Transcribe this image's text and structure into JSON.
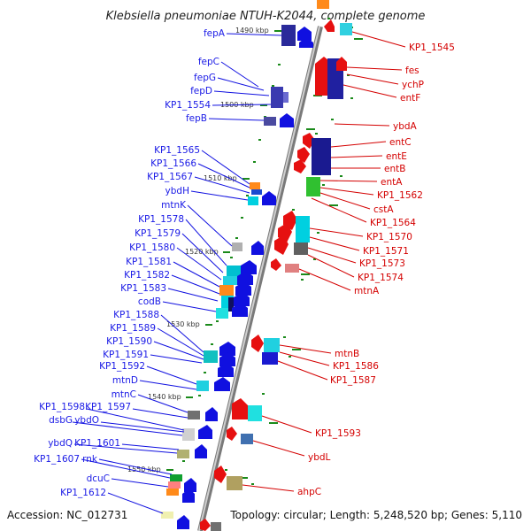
{
  "title": "Klebsiella pneumoniae NTUH-K2044, complete genome",
  "footer": {
    "accession": "Accession: NC_012731",
    "summary": "Topology: circular; Length: 5,248,520 bp; Genes: 5,110"
  },
  "ticks": [
    "1490 kbp",
    "1500 kbp",
    "1510 kbp",
    "1520 kbp",
    "1530 kbp",
    "1540 kbp",
    "1550 kbp"
  ],
  "left_labels": [
    "fepA",
    "fepC",
    "fepG",
    "fepD",
    "KP1_1554",
    "fepB",
    "KP1_1565",
    "KP1_1566",
    "KP1_1567",
    "ybdH",
    "mtnK",
    "KP1_1578",
    "KP1_1579",
    "KP1_1580",
    "KP1_1581",
    "KP1_1582",
    "KP1_1583",
    "codB",
    "KP1_1588",
    "KP1_1589",
    "KP1_1590",
    "KP1_1591",
    "KP1_1592",
    "mtnD",
    "mtnC",
    "KP1_1598",
    "KP1_1597",
    "dsbG",
    "ybdO",
    "ybdQ",
    "KP1_1601",
    "KP1_1607",
    "rnk",
    "dcuC",
    "KP1_1612"
  ],
  "right_labels": [
    "KP1_1545",
    "fes",
    "ychP",
    "entF",
    "ybdA",
    "entC",
    "entE",
    "entB",
    "entA",
    "KP1_1562",
    "cstA",
    "KP1_1564",
    "KP1_1570",
    "KP1_1571",
    "KP1_1573",
    "KP1_1574",
    "mtnA",
    "mtnB",
    "KP1_1586",
    "KP1_1587",
    "KP1_1593",
    "ybdL",
    "ahpC"
  ],
  "colors": {
    "forward": "#1010e0",
    "reverse": "#e61010",
    "backbone": "#909090",
    "tick": "#1a8a1a"
  }
}
